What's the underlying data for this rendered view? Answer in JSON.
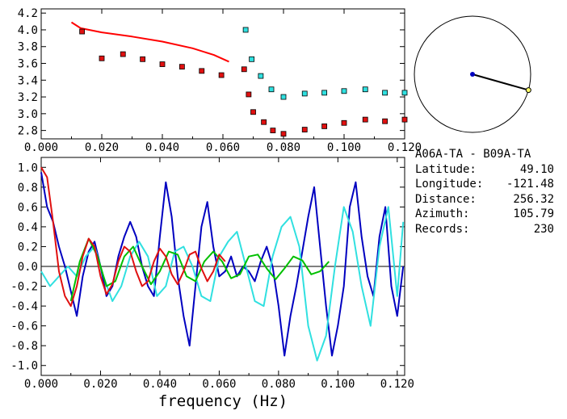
{
  "chart_data": [
    {
      "type": "scatter",
      "xlim": [
        0.0,
        0.12
      ],
      "ylim": [
        2.7,
        4.25
      ],
      "xticks": [
        "0.000",
        "0.020",
        "0.040",
        "0.060",
        "0.080",
        "0.100",
        "0.120"
      ],
      "yticks": [
        "2.8",
        "3.0",
        "3.2",
        "3.4",
        "3.6",
        "3.8",
        "4.0",
        "4.2"
      ],
      "ytick_values": [
        2.8,
        3.0,
        3.2,
        3.4,
        3.6,
        3.8,
        4.0,
        4.2
      ],
      "series": [
        {
          "color": "#ff0000",
          "kind": "line",
          "x": [
            0.01,
            0.013,
            0.02,
            0.03,
            0.04,
            0.05,
            0.057,
            0.062
          ],
          "y": [
            4.09,
            4.02,
            3.97,
            3.92,
            3.86,
            3.78,
            3.7,
            3.62
          ]
        },
        {
          "color": "#e01010",
          "kind": "square",
          "x": [
            0.0135,
            0.02,
            0.027,
            0.0335,
            0.04,
            0.0465,
            0.053,
            0.0595,
            0.067,
            0.0685,
            0.07,
            0.0735,
            0.0765,
            0.08,
            0.087,
            0.0935,
            0.1,
            0.107,
            0.1135,
            0.12
          ],
          "y": [
            3.98,
            3.66,
            3.71,
            3.65,
            3.59,
            3.56,
            3.51,
            3.46,
            3.53,
            3.23,
            3.02,
            2.9,
            2.8,
            2.76,
            2.81,
            2.85,
            2.89,
            2.93,
            2.91,
            2.93
          ]
        },
        {
          "color": "#30e0e0",
          "kind": "square",
          "x": [
            0.0675,
            0.0695,
            0.0725,
            0.076,
            0.08,
            0.087,
            0.0935,
            0.1,
            0.107,
            0.1135,
            0.12
          ],
          "y": [
            4.0,
            3.65,
            3.45,
            3.29,
            3.2,
            3.24,
            3.25,
            3.27,
            3.29,
            3.25,
            3.25
          ]
        }
      ]
    },
    {
      "type": "line",
      "xlim": [
        0.0,
        0.1225
      ],
      "ylim": [
        -1.1,
        1.1
      ],
      "xticks": [
        "0.000",
        "0.020",
        "0.040",
        "0.060",
        "0.080",
        "0.100",
        "0.120"
      ],
      "yticks": [
        "1.0",
        "0.8",
        "0.6",
        "0.4",
        "0.2",
        "0.0",
        "-0.2",
        "-0.4",
        "-0.6",
        "-0.8",
        "-1.0"
      ],
      "ytick_values": [
        1.0,
        0.8,
        0.6,
        0.4,
        0.2,
        0.0,
        -0.2,
        -0.4,
        -0.6,
        -0.8,
        -1.0
      ],
      "xlabel": "frequency (Hz)",
      "series": [
        {
          "color": "#0000c0",
          "x": [
            0.0,
            0.002,
            0.004,
            0.006,
            0.008,
            0.01,
            0.012,
            0.014,
            0.016,
            0.018,
            0.02,
            0.022,
            0.024,
            0.026,
            0.028,
            0.03,
            0.032,
            0.034,
            0.036,
            0.038,
            0.04,
            0.042,
            0.044,
            0.046,
            0.048,
            0.05,
            0.052,
            0.054,
            0.056,
            0.058,
            0.06,
            0.062,
            0.064,
            0.066,
            0.068,
            0.07,
            0.072,
            0.074,
            0.076,
            0.078,
            0.08,
            0.082,
            0.084,
            0.086,
            0.088,
            0.09,
            0.092,
            0.094,
            0.096,
            0.098,
            0.1,
            0.102,
            0.104,
            0.106,
            0.108,
            0.11,
            0.112,
            0.114,
            0.116,
            0.118,
            0.12,
            0.122
          ],
          "y": [
            0.95,
            0.6,
            0.45,
            0.2,
            0.0,
            -0.25,
            -0.5,
            -0.1,
            0.15,
            0.25,
            0.0,
            -0.3,
            -0.2,
            0.1,
            0.3,
            0.45,
            0.3,
            0.0,
            -0.2,
            -0.3,
            0.3,
            0.85,
            0.5,
            -0.1,
            -0.5,
            -0.8,
            -0.2,
            0.4,
            0.65,
            0.2,
            -0.1,
            -0.05,
            0.1,
            -0.1,
            0.0,
            -0.05,
            -0.15,
            0.05,
            0.2,
            0.0,
            -0.4,
            -0.9,
            -0.5,
            -0.2,
            0.15,
            0.5,
            0.8,
            0.2,
            -0.4,
            -0.9,
            -0.6,
            -0.2,
            0.6,
            0.85,
            0.3,
            -0.1,
            -0.3,
            0.3,
            0.6,
            -0.2,
            -0.5,
            0.0
          ]
        },
        {
          "color": "#30e0e0",
          "x": [
            0.0,
            0.003,
            0.006,
            0.009,
            0.012,
            0.015,
            0.018,
            0.021,
            0.024,
            0.027,
            0.03,
            0.033,
            0.036,
            0.039,
            0.042,
            0.045,
            0.048,
            0.051,
            0.054,
            0.057,
            0.06,
            0.063,
            0.066,
            0.069,
            0.072,
            0.075,
            0.078,
            0.081,
            0.084,
            0.087,
            0.09,
            0.093,
            0.096,
            0.099,
            0.102,
            0.105,
            0.108,
            0.111,
            0.114,
            0.117,
            0.12,
            0.122
          ],
          "y": [
            -0.05,
            -0.2,
            -0.1,
            0.0,
            -0.1,
            0.1,
            0.2,
            -0.1,
            -0.35,
            -0.2,
            0.1,
            0.25,
            0.1,
            -0.3,
            -0.2,
            0.15,
            0.2,
            0.0,
            -0.3,
            -0.35,
            0.1,
            0.25,
            0.35,
            0.0,
            -0.35,
            -0.4,
            0.1,
            0.4,
            0.5,
            0.2,
            -0.6,
            -0.95,
            -0.7,
            0.0,
            0.6,
            0.35,
            -0.2,
            -0.6,
            0.2,
            0.6,
            -0.3,
            0.45
          ]
        },
        {
          "color": "#00c000",
          "x": [
            0.01,
            0.013,
            0.016,
            0.019,
            0.022,
            0.025,
            0.028,
            0.031,
            0.034,
            0.037,
            0.04,
            0.043,
            0.046,
            0.049,
            0.052,
            0.055,
            0.058,
            0.061,
            0.064,
            0.067,
            0.07,
            0.073,
            0.076,
            0.079,
            0.082,
            0.085,
            0.088,
            0.091,
            0.094,
            0.097
          ],
          "y": [
            -0.35,
            0.05,
            0.28,
            0.1,
            -0.2,
            -0.15,
            0.1,
            0.2,
            0.0,
            -0.18,
            -0.05,
            0.15,
            0.12,
            -0.1,
            -0.15,
            0.05,
            0.15,
            0.05,
            -0.12,
            -0.08,
            0.1,
            0.12,
            -0.02,
            -0.13,
            -0.02,
            0.1,
            0.06,
            -0.08,
            -0.05,
            0.05
          ]
        },
        {
          "color": "#e01010",
          "x": [
            0.0,
            0.002,
            0.004,
            0.006,
            0.008,
            0.01,
            0.012,
            0.014,
            0.016,
            0.018,
            0.02,
            0.022,
            0.024,
            0.026,
            0.028,
            0.03,
            0.032,
            0.034,
            0.036,
            0.038,
            0.04,
            0.042,
            0.044,
            0.046,
            0.048,
            0.05,
            0.052,
            0.054,
            0.056,
            0.058,
            0.06,
            0.062
          ],
          "y": [
            1.0,
            0.9,
            0.45,
            -0.05,
            -0.3,
            -0.4,
            -0.2,
            0.1,
            0.28,
            0.2,
            -0.1,
            -0.28,
            -0.18,
            0.05,
            0.2,
            0.15,
            -0.05,
            -0.2,
            -0.15,
            0.05,
            0.18,
            0.1,
            -0.08,
            -0.18,
            -0.05,
            0.12,
            0.15,
            -0.02,
            -0.15,
            -0.05,
            0.12,
            0.05
          ]
        }
      ]
    },
    {
      "type": "diagram",
      "azimuth_deg": 105.79
    }
  ],
  "info": {
    "title": "A06A-TA - B09A-TA",
    "rows": [
      {
        "label": "Latitude:",
        "value": "49.10"
      },
      {
        "label": "Longitude:",
        "value": "-121.48"
      },
      {
        "label": "Distance:",
        "value": "256.32"
      },
      {
        "label": "Azimuth:",
        "value": "105.79"
      },
      {
        "label": "Records:",
        "value": "230"
      }
    ]
  }
}
